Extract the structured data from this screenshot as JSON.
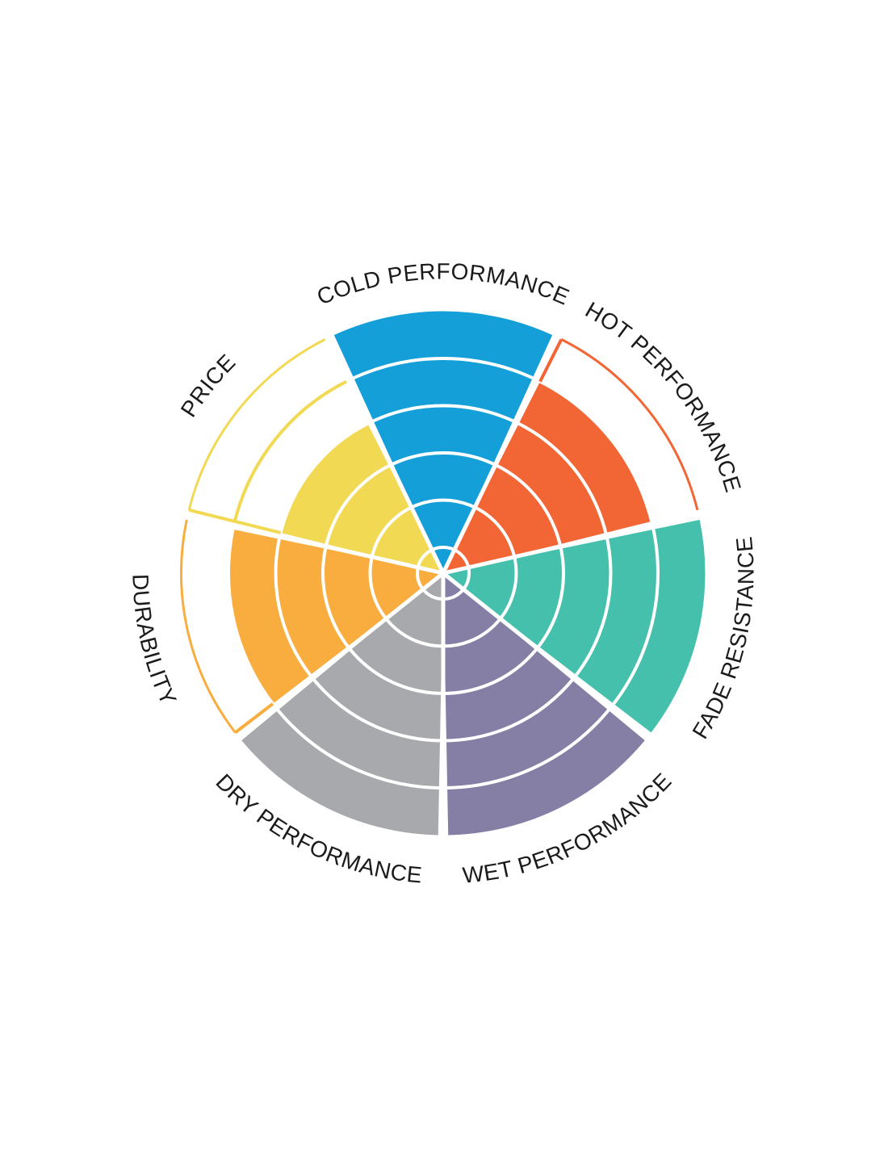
{
  "chart_data": {
    "type": "radial-bar",
    "max_level": 5,
    "categories": [
      {
        "label": "COLD PERFORMANCE",
        "value": 5,
        "color": "#149fd9"
      },
      {
        "label": "HOT PERFORMANCE",
        "value": 4,
        "color": "#f26535"
      },
      {
        "label": "FADE RESISTANCE",
        "value": 5,
        "color": "#45c0ac"
      },
      {
        "label": "WET PERFORMANCE",
        "value": 5,
        "color": "#857ea5"
      },
      {
        "label": "DRY PERFORMANCE",
        "value": 5,
        "color": "#a8a9ad"
      },
      {
        "label": "DURABILITY",
        "value": 4,
        "color": "#f8ad3e"
      },
      {
        "label": "PRICE",
        "value": 3,
        "color": "#f2d953"
      }
    ],
    "grid": true,
    "legend": "none"
  }
}
